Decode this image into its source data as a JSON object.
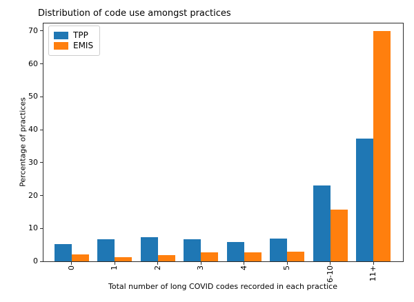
{
  "figure": {
    "title": "Distribution of code use amongst practices",
    "xlabel": "Total number of long COVID codes recorded in each practice",
    "ylabel": "Percentage of practices"
  },
  "legend": {
    "position": "upper left",
    "items": [
      {
        "label": "TPP",
        "color": "#1f77b4"
      },
      {
        "label": "EMIS",
        "color": "#ff7f0e"
      }
    ]
  },
  "chart_data": {
    "type": "bar",
    "title": "Distribution of code use amongst practices",
    "xlabel": "Total number of long COVID codes recorded in each practice",
    "ylabel": "Percentage of practices",
    "categories": [
      "0",
      "1",
      "2",
      "3",
      "4",
      "5",
      "6-10",
      "11+"
    ],
    "series": [
      {
        "name": "TPP",
        "color": "#1f77b4",
        "values": [
          5.2,
          6.8,
          7.4,
          6.7,
          5.9,
          7.0,
          23.0,
          37.3
        ]
      },
      {
        "name": "EMIS",
        "color": "#ff7f0e",
        "values": [
          2.0,
          1.3,
          1.8,
          2.7,
          2.7,
          3.0,
          15.8,
          69.9
        ]
      }
    ],
    "ylim": [
      0,
      72.5
    ],
    "yticks": [
      0,
      10,
      20,
      30,
      40,
      50,
      60,
      70
    ],
    "grid": false,
    "legend_position": "upper left"
  }
}
